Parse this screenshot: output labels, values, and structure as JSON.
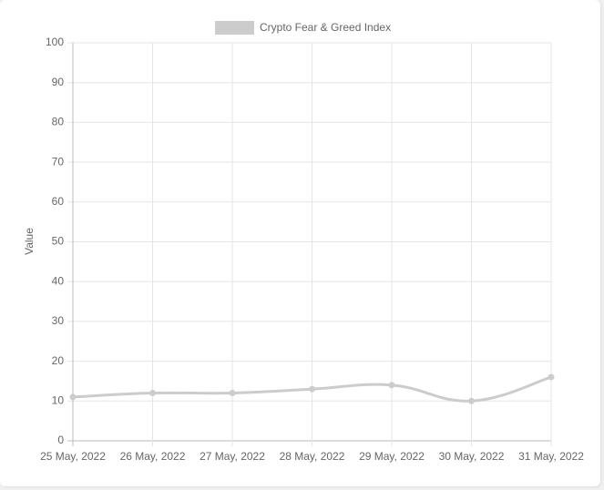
{
  "chart_data": {
    "type": "line",
    "categories": [
      "25 May, 2022",
      "26 May, 2022",
      "27 May, 2022",
      "28 May, 2022",
      "29 May, 2022",
      "30 May, 2022",
      "31 May, 2022"
    ],
    "series": [
      {
        "name": "Crypto Fear & Greed Index",
        "color": "#cccccc",
        "values": [
          11,
          12,
          12,
          13,
          14,
          10,
          16
        ]
      }
    ],
    "y_label": "Value",
    "ylim": [
      0,
      100
    ],
    "yticks": [
      0,
      10,
      20,
      30,
      40,
      50,
      60,
      70,
      80,
      90,
      100
    ],
    "grid": true,
    "legend": "top"
  }
}
